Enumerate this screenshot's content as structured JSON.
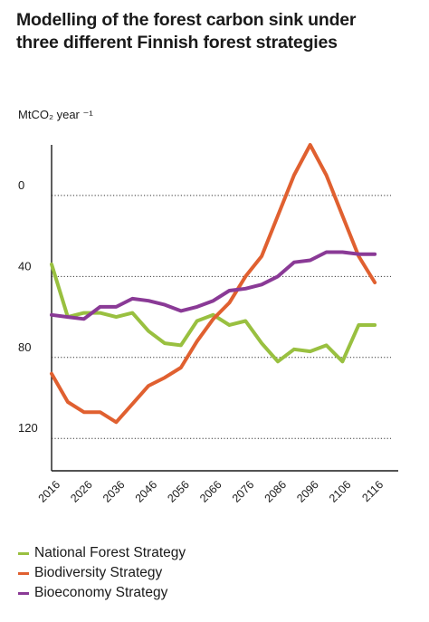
{
  "chart_data": {
    "type": "line",
    "title_line1": "Modelling of the forest carbon sink under",
    "title_line2": "three different Finnish forest strategies",
    "ylabel": "MtCO₂ year ⁻¹",
    "y_inverted": true,
    "ylim": [
      -25,
      136
    ],
    "y_ticks": [
      0,
      40,
      80,
      120
    ],
    "xlim": [
      2016,
      2121
    ],
    "x_ticks": [
      2016,
      2026,
      2036,
      2046,
      2056,
      2066,
      2076,
      2086,
      2096,
      2106,
      2116
    ],
    "grid": "horizontal dotted",
    "legend_position": "bottom-left",
    "series": [
      {
        "name": "National Forest Strategy",
        "color": "#99c040",
        "x": [
          2016,
          2021,
          2026,
          2031,
          2036,
          2041,
          2046,
          2051,
          2056,
          2061,
          2066,
          2071,
          2076,
          2081,
          2086,
          2091,
          2096,
          2101,
          2106,
          2111,
          2116
        ],
        "y": [
          34,
          60,
          58,
          58,
          60,
          58,
          67,
          73,
          74,
          62,
          59,
          64,
          62,
          73,
          82,
          76,
          77,
          74,
          82,
          64,
          64
        ]
      },
      {
        "name": "Biodiversity Strategy",
        "color": "#e06030",
        "x": [
          2016,
          2021,
          2026,
          2031,
          2036,
          2041,
          2046,
          2051,
          2056,
          2061,
          2066,
          2071,
          2076,
          2081,
          2086,
          2091,
          2096,
          2101,
          2106,
          2111,
          2116
        ],
        "y": [
          88,
          102,
          107,
          107,
          112,
          103,
          94,
          90,
          85,
          72,
          61,
          53,
          40,
          30,
          10,
          -10,
          -25,
          -10,
          10,
          30,
          43
        ]
      },
      {
        "name": "Bioeconomy Strategy",
        "color": "#8a3a96",
        "x": [
          2016,
          2021,
          2026,
          2031,
          2036,
          2041,
          2046,
          2051,
          2056,
          2061,
          2066,
          2071,
          2076,
          2081,
          2086,
          2091,
          2096,
          2101,
          2106,
          2111,
          2116
        ],
        "y": [
          59,
          60,
          61,
          55,
          55,
          51,
          52,
          54,
          57,
          55,
          52,
          47,
          46,
          44,
          40,
          33,
          32,
          28,
          28,
          29,
          29
        ]
      }
    ]
  },
  "legend": {
    "items": [
      {
        "label": "National Forest Strategy",
        "color": "#99c040"
      },
      {
        "label": "Biodiversity Strategy",
        "color": "#e06030"
      },
      {
        "label": "Bioeconomy Strategy",
        "color": "#8a3a96"
      }
    ]
  }
}
